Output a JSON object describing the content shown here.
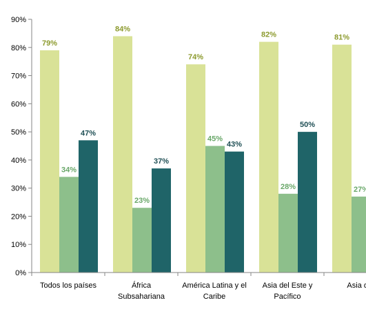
{
  "chart_data": {
    "type": "bar",
    "categories": [
      [
        "Todos los países"
      ],
      [
        "África",
        "Subsahariana"
      ],
      [
        "América Latina y el",
        "Caribe"
      ],
      [
        "Asia del Este  y",
        "Pacífico"
      ],
      [
        "Asia del"
      ]
    ],
    "series": [
      {
        "values": [
          79,
          84,
          74,
          82,
          81
        ],
        "labels": [
          "79%",
          "84%",
          "74%",
          "82%",
          "81%"
        ],
        "color": "#d9e297",
        "label_color": "#8c9a2e"
      },
      {
        "values": [
          34,
          23,
          45,
          28,
          27
        ],
        "labels": [
          "34%",
          "23%",
          "45%",
          "28%",
          "27%"
        ],
        "color": "#8dbf8b",
        "label_color": "#6aa86a"
      },
      {
        "values": [
          47,
          37,
          43,
          50,
          null
        ],
        "labels": [
          "47%",
          "37%",
          "43%",
          "50%",
          ""
        ],
        "color": "#1f6468",
        "label_color": "#1f4f55"
      }
    ],
    "y_ticks": [
      "0%",
      "10%",
      "20%",
      "30%",
      "40%",
      "50%",
      "60%",
      "70%",
      "80%",
      "90%"
    ],
    "ylim": [
      0,
      90
    ],
    "grid": false,
    "legend": "none",
    "title": "",
    "xlabel": "",
    "ylabel": ""
  }
}
